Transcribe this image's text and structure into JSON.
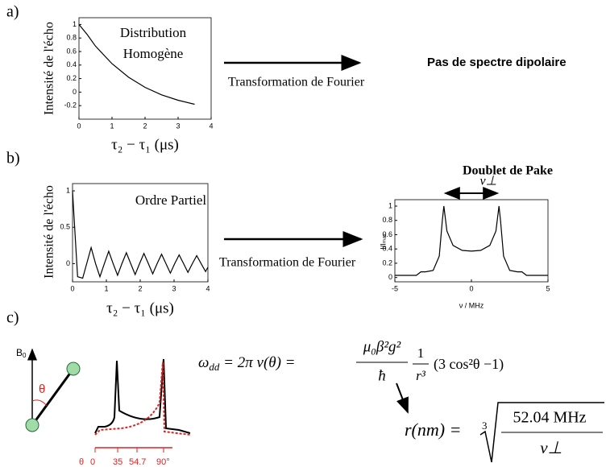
{
  "chart_data": [
    {
      "type": "line",
      "y_label": "Intensité de l'écho",
      "x_label": "τ₂ − τ₁ (μs)",
      "annotation": [
        "Distribution",
        "Homogène"
      ],
      "x": [
        0,
        0.25,
        0.5,
        1,
        1.5,
        2,
        2.5,
        3,
        3.5
      ],
      "values": [
        1,
        0.85,
        0.68,
        0.42,
        0.22,
        0.07,
        -0.04,
        -0.12,
        -0.18
      ],
      "xlim": [
        0,
        4
      ],
      "ylim": [
        -0.4,
        1.1
      ],
      "xticks": [
        0,
        1,
        2,
        3,
        4
      ],
      "yticks": [
        -0.2,
        0,
        0.2,
        0.4,
        0.6,
        0.8,
        1
      ],
      "color": "#000000"
    },
    {
      "type": "line",
      "y_label": "Intensité de l'écho",
      "x_label": "τ₂ − τ₁ (μs)",
      "annotation": [
        "Ordre Partiel"
      ],
      "x": [
        0,
        0.05,
        0.15,
        0.3,
        0.42,
        0.55,
        0.68,
        0.81,
        0.94,
        1.07,
        1.2,
        1.33,
        1.46,
        1.59,
        1.72,
        1.85,
        1.98,
        2.11,
        2.24,
        2.37,
        2.5,
        2.63,
        2.76,
        2.89,
        3.02,
        3.15,
        3.28,
        3.41,
        3.54,
        3.67,
        3.8,
        3.93,
        4
      ],
      "values": [
        1,
        0.6,
        -0.18,
        -0.2,
        0,
        0.22,
        0,
        -0.18,
        0,
        0.17,
        0,
        -0.16,
        0,
        0.15,
        0,
        -0.15,
        0,
        0.14,
        0,
        -0.14,
        0,
        0.13,
        0,
        -0.13,
        0,
        0.12,
        0,
        -0.12,
        0,
        0.11,
        0,
        -0.11,
        -0.05
      ],
      "xlim": [
        0,
        4
      ],
      "ylim": [
        -0.25,
        1.1
      ],
      "xticks": [
        0,
        1,
        2,
        3,
        4
      ],
      "yticks": [
        0,
        0.5,
        1
      ],
      "color": "#000000"
    },
    {
      "type": "line",
      "title": "Doublet de Pake",
      "y_label": "I/Iₘₐₓ",
      "x_label": "ν / MHz",
      "annotation": [
        "ν⊥"
      ],
      "x": [
        -5,
        -3.6,
        -3.3,
        -3.0,
        -2.5,
        -2.1,
        -1.9,
        -1.8,
        -1.6,
        -1.2,
        -0.6,
        0,
        0.6,
        1.2,
        1.6,
        1.8,
        1.9,
        2.1,
        2.5,
        3.0,
        3.3,
        3.6,
        5
      ],
      "values": [
        0.03,
        0.03,
        0.08,
        0.08,
        0.1,
        0.3,
        0.8,
        1,
        0.65,
        0.45,
        0.38,
        0.37,
        0.38,
        0.45,
        0.65,
        1,
        0.8,
        0.3,
        0.1,
        0.08,
        0.08,
        0.03,
        0.03
      ],
      "xlim": [
        -5,
        5
      ],
      "ylim": [
        -0.06,
        1.09
      ],
      "xticks": [
        -5,
        0,
        5
      ],
      "yticks": [
        0,
        0.2,
        0.4,
        0.6,
        0.8,
        1
      ],
      "color": "#000000"
    }
  ],
  "panel_labels": [
    "a)",
    "b)",
    "c)"
  ],
  "arrow_text": [
    "Transformation de Fourier",
    "Transformation de Fourier"
  ],
  "result_a": "Pas de spectre dipolaire",
  "diagram": {
    "field": "B",
    "field_sub": "0",
    "angle": "θ",
    "angle_axis": [
      "θ",
      "0",
      "35",
      "54.7",
      "90°"
    ]
  },
  "equations": [
    {
      "lhs": "ω",
      "lhs_sub": "dd",
      "middle": " = 2π ν(θ) = ",
      "numerator": "μ₀β²g²",
      "denominator": "ħ",
      "factor_numerator": "1",
      "factor_denominator": "r³",
      "angular": "(3 cos²θ −1)"
    },
    {
      "lhs": "r(nm) = ",
      "root_index": "3",
      "numerator": "52.04    MHz",
      "denominator": "ν⊥"
    }
  ]
}
